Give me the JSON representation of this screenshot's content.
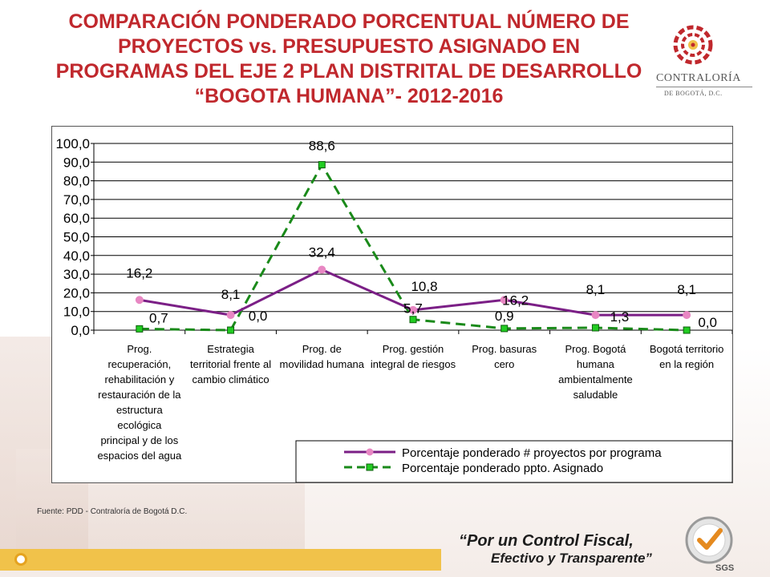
{
  "title_lines": [
    "COMPARACIÓN PONDERADO PORCENTUAL NÚMERO DE",
    "PROYECTOS vs. PRESUPUESTO ASIGNADO EN",
    "PROGRAMAS DEL EJE 2 PLAN DISTRITAL DE DESARROLLO",
    "“BOGOTA HUMANA”- 2012-2016"
  ],
  "logo": {
    "name": "CONTRALORÍA",
    "sub": "DE BOGOTÁ, D.C.",
    "icon": "contraloria-logo-icon"
  },
  "source": "Fuente: PDD - Contraloría de Bogotá D.C.",
  "slogan": {
    "line1": "“Por un Control Fiscal,",
    "line2": "Efectivo y Transparente”"
  },
  "cert": {
    "text": "SGS",
    "icon": "iso-9001-cert-icon"
  },
  "colors": {
    "title": "#c0282d",
    "series1": "#7b1f86",
    "series1_marker": "#e887c3",
    "series2": "#1a8a1a",
    "series2_marker": "#22cc22",
    "footer": "#f1c24a"
  },
  "chart_data": {
    "type": "line",
    "title": "",
    "xlabel": "",
    "ylabel": "",
    "ylim": [
      0,
      100
    ],
    "yticks": [
      "0,0",
      "10,0",
      "20,0",
      "30,0",
      "40,0",
      "50,0",
      "60,0",
      "70,0",
      "80,0",
      "90,0",
      "100,0"
    ],
    "grid": true,
    "legend_position": "bottom-right",
    "categories": [
      [
        "Prog.",
        "recuperación,",
        "rehabilitación y",
        "restauración de la",
        "estructura",
        "ecológica",
        "principal y de los",
        "espacios del agua"
      ],
      [
        "Estrategia",
        "territorial frente al",
        "cambio climático"
      ],
      [
        "Prog. de",
        "movilidad humana"
      ],
      [
        "Prog. gestión",
        "integral de riesgos"
      ],
      [
        "Prog. basuras",
        "cero"
      ],
      [
        "Prog. Bogotá",
        "humana",
        "ambientalmente",
        "saludable"
      ],
      [
        "Bogotá territorio",
        "en la región"
      ]
    ],
    "series": [
      {
        "name": "Porcentaje ponderado # proyectos por programa",
        "values": [
          16.2,
          8.1,
          32.4,
          10.8,
          16.2,
          8.1,
          8.1
        ],
        "labels": [
          "16,2",
          "8,1",
          "32,4",
          "10,8",
          "16,2",
          "8,1",
          "8,1"
        ]
      },
      {
        "name": "Porcentaje ponderado ppto. Asignado",
        "values": [
          0.7,
          0.0,
          88.6,
          5.7,
          0.9,
          1.3,
          0.0
        ],
        "labels": [
          "0,7",
          "0,0",
          "88,6",
          "5,7",
          "0,9",
          "1,3",
          "0,0"
        ]
      }
    ]
  }
}
